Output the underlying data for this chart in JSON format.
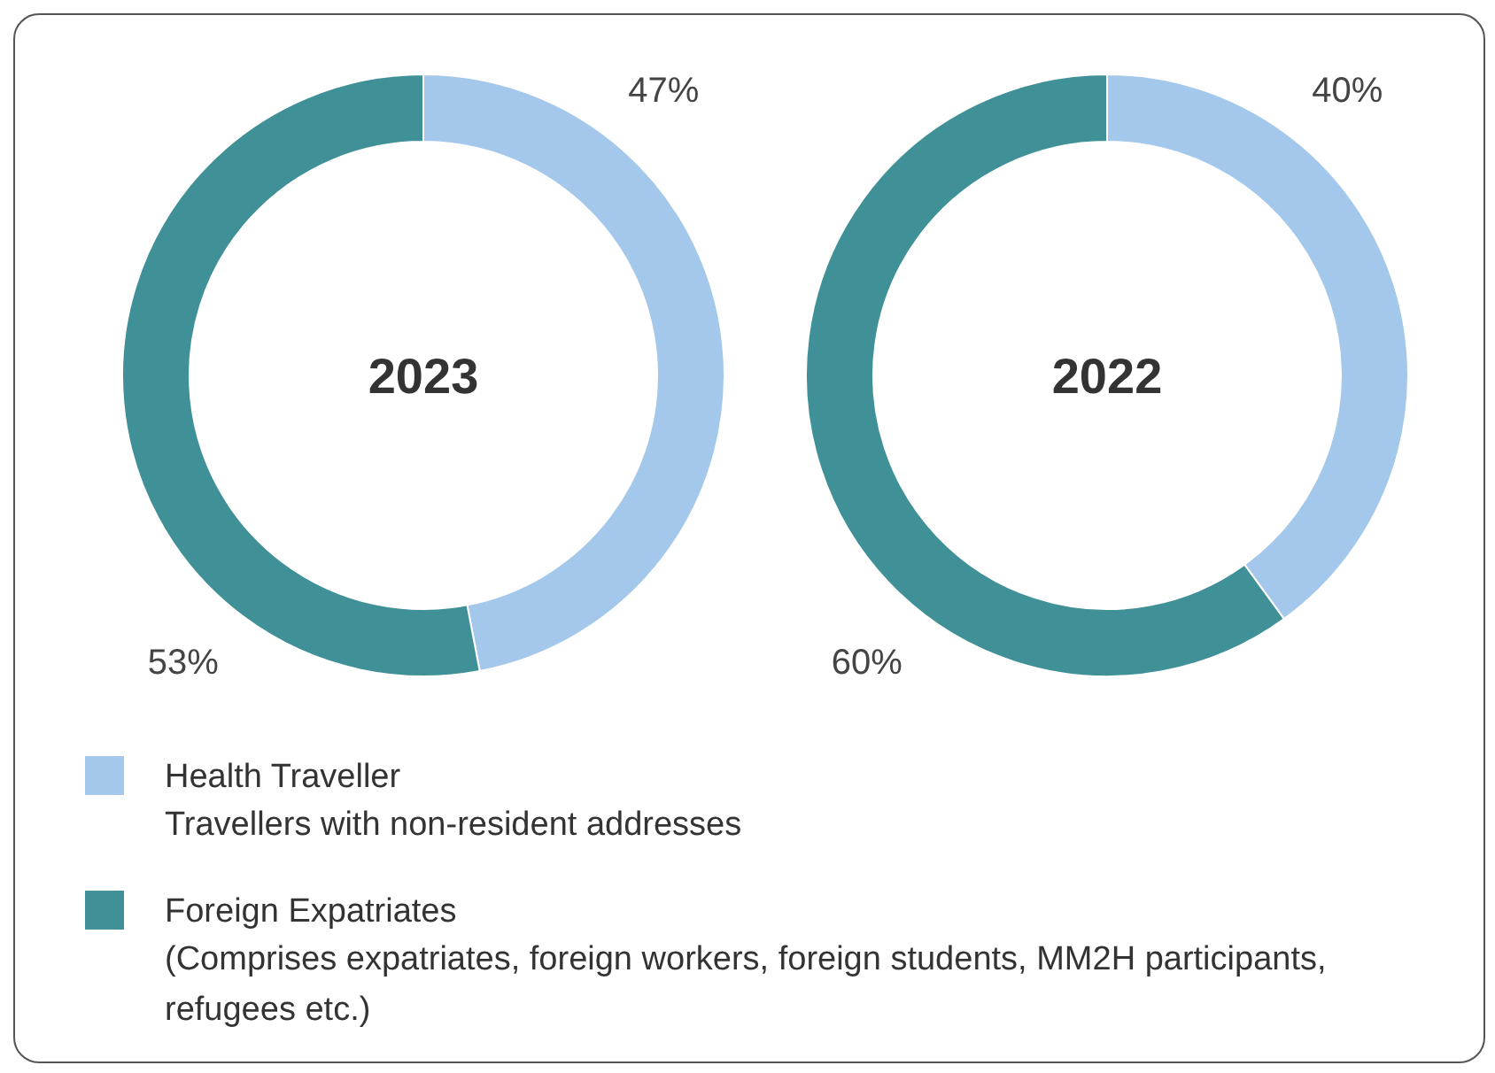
{
  "chart_data": [
    {
      "type": "donut",
      "title": "2023",
      "categories": [
        "Health Traveller",
        "Foreign Expatriates"
      ],
      "values": [
        47,
        53
      ],
      "colors": [
        "#a3c8ec",
        "#3f9197"
      ],
      "value_labels": [
        "47%",
        "53%"
      ],
      "legend": "bottom",
      "annotations": [
        "Travellers with non-resident addresses",
        "(Comprises expatriates, foreign workers, foreign students, MM2H participants, refugees etc.)"
      ]
    },
    {
      "type": "donut",
      "title": "2022",
      "categories": [
        null,
        null
      ],
      "values": [
        40,
        60
      ],
      "colors": [
        "#a3c8ec",
        "#3f9197"
      ],
      "value_labels": [
        "40%",
        "60%"
      ]
    }
  ]
}
